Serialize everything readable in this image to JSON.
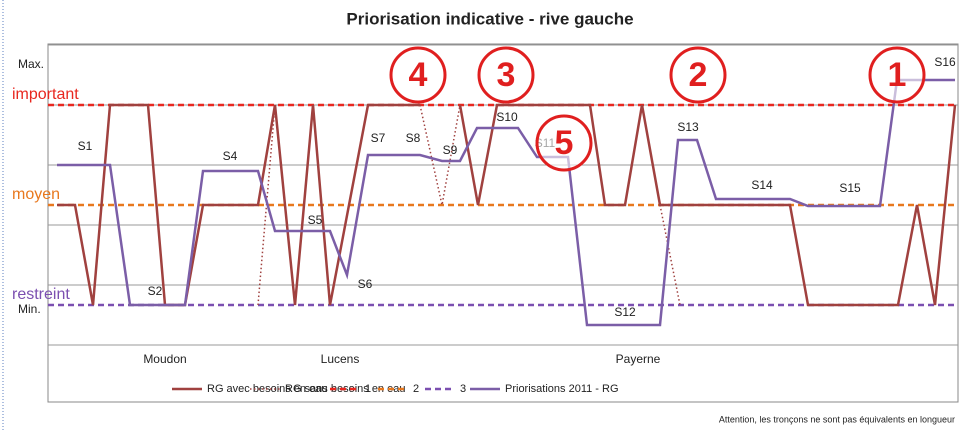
{
  "chart_data": {
    "type": "line",
    "title": "Priorisation indicative - rive gauche",
    "xlim": [
      0,
      910
    ],
    "ylim": [
      0,
      15
    ],
    "ygrid": [
      0,
      3,
      6,
      9,
      12,
      15
    ],
    "yticks": [
      {
        "value": 14,
        "label": "Max."
      },
      {
        "value": 1.75,
        "label": "Min."
      }
    ],
    "reference_lines": [
      {
        "name": "1",
        "label": "important",
        "value": 12,
        "color": "#e8271f"
      },
      {
        "name": "2",
        "label": "moyen",
        "value": 7,
        "color": "#e8781e"
      },
      {
        "name": "3",
        "label": "restreint",
        "value": 2,
        "color": "#7b4fb0"
      }
    ],
    "series": [
      {
        "name": "RG avec besoins en eau",
        "color": "#a0413f",
        "style": "solid",
        "x": [
          9,
          27,
          45,
          62,
          100,
          117,
          137,
          155,
          210,
          227,
          247,
          265,
          282,
          320,
          372,
          383,
          412,
          430,
          449,
          542,
          557,
          577,
          594,
          612,
          742,
          760,
          850,
          869,
          887,
          907
        ],
        "values": [
          7,
          7,
          2,
          12,
          12,
          2,
          2,
          7,
          7,
          12,
          2,
          12,
          2,
          12,
          12,
          null,
          12,
          7,
          12,
          12,
          7,
          7,
          12,
          7,
          7,
          2,
          2,
          7,
          2,
          12
        ]
      },
      {
        "name": "RG sans besoins en eau",
        "color": "#a0413f",
        "style": "dotted",
        "x": [
          210,
          227,
          300,
          372,
          394,
          412,
          500,
          612,
          632
        ],
        "values": [
          2,
          12,
          null,
          12,
          7,
          12,
          null,
          7,
          2
        ]
      },
      {
        "name": "Priorisations 2011 - RG",
        "color": "#7b5ea7",
        "style": "solid",
        "x": [
          9,
          62,
          82,
          137,
          155,
          210,
          227,
          282,
          299,
          320,
          372,
          394,
          412,
          429,
          470,
          489,
          520,
          539,
          612,
          630,
          649,
          668,
          742,
          760,
          832,
          849,
          907
        ],
        "values": [
          9,
          9,
          2,
          2,
          8.7,
          8.7,
          5.7,
          5.7,
          3.5,
          9.5,
          9.5,
          9.2,
          9.2,
          10.85,
          10.85,
          9.4,
          9.4,
          1,
          1,
          10.25,
          10.25,
          7.3,
          7.3,
          6.95,
          6.95,
          13.25,
          13.25
        ]
      }
    ],
    "segment_labels": [
      "S1",
      "S2",
      "S4",
      "S5",
      "S6",
      "S7",
      "S8",
      "S9",
      "S10",
      "S11",
      "S12",
      "S13",
      "S14",
      "S15",
      "S16"
    ],
    "priorities": [
      "4",
      "3",
      "2",
      "1",
      "5"
    ],
    "regions": [
      "Moudon",
      "Lucens",
      "Payerne"
    ],
    "footnote": "Attention, les tronçons ne sont pas équivalents en longueur"
  }
}
